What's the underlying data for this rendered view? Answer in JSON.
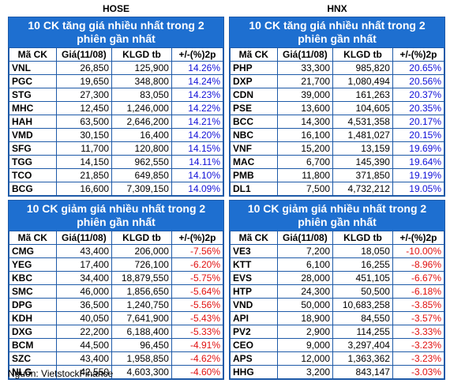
{
  "hose_label": "HOSE",
  "hnx_label": "HNX",
  "gain_title": "10 CK tăng giá nhiều nhất trong 2 phiên gần nhất",
  "loss_title": "10 CK giảm giá nhiều nhất trong 2 phiên gần nhất",
  "columns": [
    "Mã CK",
    "Giá(11/08)",
    "KLGD tb",
    "+/-(%)2p"
  ],
  "colors": {
    "header_bg": "#1e6fd0",
    "border": "#1e5aa8",
    "up": "#1010d8",
    "down": "#e01010"
  },
  "hose_gain": [
    [
      "VNL",
      "26,850",
      "125,900",
      "14.26%"
    ],
    [
      "PGC",
      "19,650",
      "348,800",
      "14.24%"
    ],
    [
      "STG",
      "27,300",
      "83,050",
      "14.23%"
    ],
    [
      "MHC",
      "12,450",
      "1,246,000",
      "14.22%"
    ],
    [
      "HAH",
      "63,500",
      "2,646,200",
      "14.21%"
    ],
    [
      "VMD",
      "30,150",
      "16,400",
      "14.20%"
    ],
    [
      "SFG",
      "11,700",
      "120,800",
      "14.15%"
    ],
    [
      "TGG",
      "14,150",
      "962,550",
      "14.11%"
    ],
    [
      "TCO",
      "21,850",
      "649,850",
      "14.10%"
    ],
    [
      "BCG",
      "16,600",
      "7,309,150",
      "14.09%"
    ]
  ],
  "hnx_gain": [
    [
      "PHP",
      "33,300",
      "985,820",
      "20.65%"
    ],
    [
      "DXP",
      "21,700",
      "1,080,494",
      "20.56%"
    ],
    [
      "CDN",
      "39,000",
      "161,263",
      "20.37%"
    ],
    [
      "PSE",
      "13,600",
      "104,605",
      "20.35%"
    ],
    [
      "BCC",
      "14,300",
      "4,531,358",
      "20.17%"
    ],
    [
      "NBC",
      "16,100",
      "1,481,027",
      "20.15%"
    ],
    [
      "VNF",
      "15,200",
      "13,159",
      "19.69%"
    ],
    [
      "MAC",
      "6,700",
      "145,390",
      "19.64%"
    ],
    [
      "PMB",
      "11,800",
      "371,850",
      "19.19%"
    ],
    [
      "DL1",
      "7,500",
      "4,732,212",
      "19.05%"
    ]
  ],
  "hose_loss": [
    [
      "CMG",
      "43,400",
      "206,000",
      "-7.56%"
    ],
    [
      "YEG",
      "17,400",
      "726,100",
      "-6.20%"
    ],
    [
      "KBC",
      "34,400",
      "18,879,550",
      "-5.75%"
    ],
    [
      "SMC",
      "46,000",
      "1,856,650",
      "-5.64%"
    ],
    [
      "DPG",
      "36,500",
      "1,240,750",
      "-5.56%"
    ],
    [
      "KDH",
      "40,050",
      "7,641,900",
      "-5.43%"
    ],
    [
      "DXG",
      "22,200",
      "6,188,400",
      "-5.33%"
    ],
    [
      "BCM",
      "44,500",
      "96,450",
      "-4.91%"
    ],
    [
      "SZC",
      "43,400",
      "1,958,850",
      "-4.62%"
    ],
    [
      "NLG",
      "42,550",
      "4,603,300",
      "-4.60%"
    ]
  ],
  "hnx_loss": [
    [
      "VE3",
      "7,200",
      "18,050",
      "-10.00%"
    ],
    [
      "KTT",
      "6,100",
      "16,255",
      "-8.96%"
    ],
    [
      "EVS",
      "28,000",
      "451,105",
      "-6.67%"
    ],
    [
      "HTP",
      "24,300",
      "50,500",
      "-6.18%"
    ],
    [
      "VND",
      "50,000",
      "10,683,258",
      "-3.85%"
    ],
    [
      "API",
      "18,900",
      "84,550",
      "-3.57%"
    ],
    [
      "PV2",
      "2,900",
      "114,255",
      "-3.33%"
    ],
    [
      "CEO",
      "9,000",
      "3,297,404",
      "-3.23%"
    ],
    [
      "APS",
      "12,000",
      "1,363,362",
      "-3.23%"
    ],
    [
      "HHG",
      "3,200",
      "843,147",
      "-3.03%"
    ]
  ],
  "source": "Nguồn: VietstockFinance"
}
